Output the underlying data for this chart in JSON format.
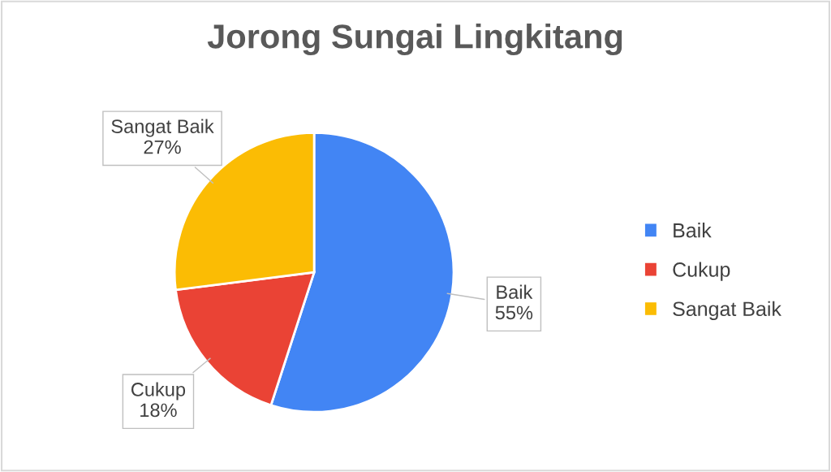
{
  "chart_data": {
    "type": "pie",
    "title": "Jorong Sungai Lingkitang",
    "categories": [
      "Baik",
      "Cukup",
      "Sangat Baik"
    ],
    "values": [
      55,
      18,
      27
    ],
    "colors": [
      "#4285f4",
      "#ea4335",
      "#fbbc04"
    ],
    "value_labels": [
      "55%",
      "18%",
      "27%"
    ],
    "legend": "right"
  }
}
